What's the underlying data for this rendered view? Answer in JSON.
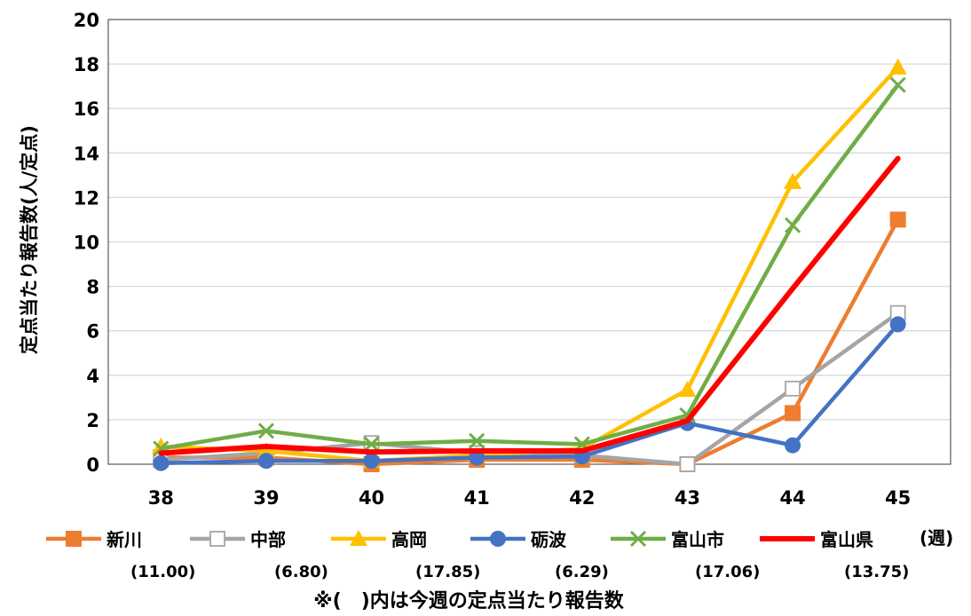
{
  "chart_data": {
    "type": "line",
    "title": "",
    "ylabel": "定点当たり報告数(人/定点)",
    "x_unit_label": "(週)",
    "categories": [
      "38",
      "39",
      "40",
      "41",
      "42",
      "43",
      "44",
      "45"
    ],
    "ylim": [
      0,
      20
    ],
    "yticks": [
      "0",
      "2",
      "4",
      "6",
      "8",
      "10",
      "12",
      "14",
      "16",
      "18",
      "20"
    ],
    "grid": true,
    "legend_position": "bottom",
    "series": [
      {
        "name": "新川",
        "this_week": "(11.00)",
        "color": "#ED7D31",
        "marker": "square",
        "values": [
          0.3,
          0.3,
          0.0,
          0.2,
          0.2,
          0.0,
          2.3,
          11.0
        ]
      },
      {
        "name": "中部",
        "this_week": "(6.80)",
        "color": "#A5A5A5",
        "marker": "hollow-square",
        "values": [
          0.2,
          0.5,
          0.95,
          0.5,
          0.4,
          0.0,
          3.4,
          6.8
        ]
      },
      {
        "name": "高岡",
        "this_week": "(17.85)",
        "color": "#FFC000",
        "marker": "triangle",
        "values": [
          0.8,
          0.6,
          0.15,
          0.4,
          0.7,
          3.35,
          12.7,
          17.85
        ]
      },
      {
        "name": "砺波",
        "this_week": "(6.29)",
        "color": "#4472C4",
        "marker": "circle",
        "values": [
          0.05,
          0.15,
          0.15,
          0.3,
          0.35,
          1.85,
          0.85,
          6.29
        ]
      },
      {
        "name": "富山市",
        "this_week": "(17.06)",
        "color": "#70AD47",
        "marker": "x",
        "values": [
          0.7,
          1.5,
          0.9,
          1.05,
          0.9,
          2.2,
          10.75,
          17.06
        ]
      },
      {
        "name": "富山県",
        "this_week": "(13.75)",
        "color": "#FF0000",
        "marker": "none",
        "values": [
          0.5,
          0.8,
          0.55,
          0.6,
          0.6,
          1.95,
          7.9,
          13.75
        ]
      }
    ]
  },
  "footnote": "※(　)内は今週の定点当たり報告数"
}
